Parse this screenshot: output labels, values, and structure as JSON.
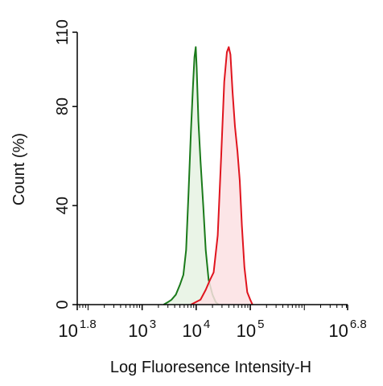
{
  "chart_data": {
    "type": "area",
    "xlabel": "Log Fluoresence Intensity-H",
    "ylabel": "Count  (%)",
    "x_scale": "log10",
    "xlim": [
      63.0957,
      6309573.4
    ],
    "ylim": [
      0,
      110
    ],
    "y_ticks": [
      {
        "value": 0,
        "label": "0"
      },
      {
        "value": 40,
        "label": "40"
      },
      {
        "value": 80,
        "label": "80"
      },
      {
        "value": 110,
        "label": "110"
      }
    ],
    "x_ticks": [
      {
        "value": 63.0957,
        "base": "10",
        "exp": "1.8"
      },
      {
        "value": 1000,
        "base": "10",
        "exp": "3"
      },
      {
        "value": 10000,
        "base": "10",
        "exp": "4"
      },
      {
        "value": 100000,
        "base": "10",
        "exp": "5"
      },
      {
        "value": 6309573.4,
        "base": "10",
        "exp": "6.8"
      }
    ],
    "grid": false,
    "legend": "none",
    "series": [
      {
        "color": "#1a7a1a",
        "fill": "#e6f2e3",
        "points": [
          [
            2500,
            0
          ],
          [
            3000,
            1
          ],
          [
            3500,
            2
          ],
          [
            4200,
            4
          ],
          [
            5000,
            8
          ],
          [
            5800,
            12
          ],
          [
            6500,
            22
          ],
          [
            7200,
            45
          ],
          [
            8000,
            70
          ],
          [
            8700,
            88
          ],
          [
            9300,
            100
          ],
          [
            9800,
            104
          ],
          [
            10200,
            96
          ],
          [
            11000,
            74
          ],
          [
            12000,
            58
          ],
          [
            13500,
            40
          ],
          [
            15000,
            22
          ],
          [
            17000,
            10
          ],
          [
            20000,
            4
          ],
          [
            23000,
            1
          ],
          [
            26000,
            0
          ]
        ]
      },
      {
        "color": "#e0141e",
        "fill": "#fbe0e3",
        "points": [
          [
            8000,
            0
          ],
          [
            12000,
            2
          ],
          [
            15000,
            6
          ],
          [
            18000,
            10
          ],
          [
            21000,
            13
          ],
          [
            25000,
            28
          ],
          [
            29000,
            60
          ],
          [
            33000,
            90
          ],
          [
            37000,
            102
          ],
          [
            40000,
            104
          ],
          [
            43000,
            101
          ],
          [
            47000,
            86
          ],
          [
            52000,
            72
          ],
          [
            58000,
            62
          ],
          [
            64000,
            50
          ],
          [
            70000,
            32
          ],
          [
            78000,
            15
          ],
          [
            88000,
            5
          ],
          [
            100000,
            2
          ],
          [
            110000,
            0
          ]
        ]
      }
    ]
  }
}
